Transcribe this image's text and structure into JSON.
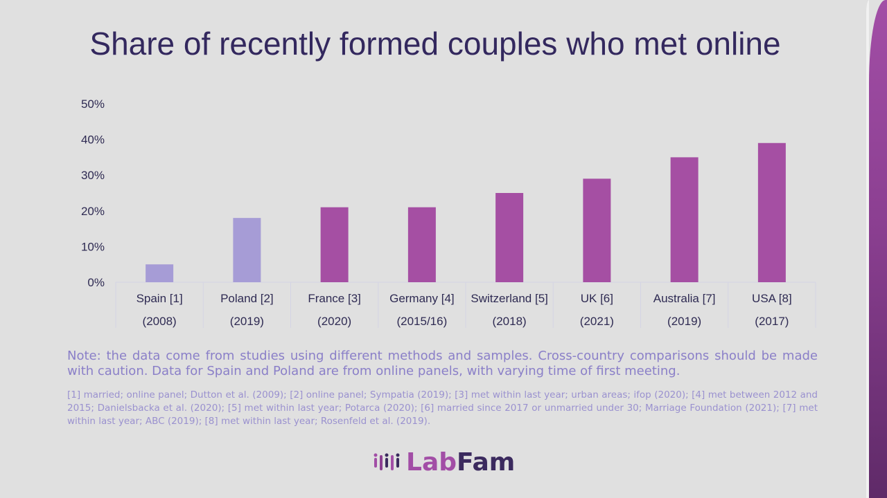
{
  "slide": {
    "title": "Share of recently formed couples who met online",
    "note": "Note: the data come from studies using different methods and samples. Cross-country comparisons should be made with caution. Data for Spain and Poland are from online panels, with varying time of first meeting.",
    "references": "[1] married; online panel; Dutton et al. (2009); [2] online panel; Sympatia (2019); [3] met within last year; urban areas; ifop (2020); [4] met between 2012 and 2015; Danielsbacka et al. (2020); [5] met within last year; Potarca (2020); [6] married since 2017 or unmarried under 30; Marriage Foundation (2021); [7] met within last year; ABC (2019); [8] met within last year; Rosenfeld et al. (2019).",
    "logo": {
      "part1": "Lab",
      "part2": "Fam"
    }
  },
  "colors": {
    "bar_primary": "#a54fa3",
    "bar_online_panel": "#a69cd6",
    "title": "#33285e",
    "axis_text": "#2e2a52"
  },
  "chart_data": {
    "type": "bar",
    "title": "Share of recently formed couples who met online",
    "categories": [
      "Spain [1]",
      "Poland [2]",
      "France [3]",
      "Germany [4]",
      "Switzerland [5]",
      "UK [6]",
      "Australia [7]",
      "USA [8]"
    ],
    "category_years": [
      "(2008)",
      "(2019)",
      "(2020)",
      "(2015/16)",
      "(2018)",
      "(2021)",
      "(2019)",
      "(2017)"
    ],
    "values": [
      5,
      18,
      21,
      21,
      25,
      29,
      35,
      39
    ],
    "bar_colors": [
      "#a69cd6",
      "#a69cd6",
      "#a54fa3",
      "#a54fa3",
      "#a54fa3",
      "#a54fa3",
      "#a54fa3",
      "#a54fa3"
    ],
    "yticks": [
      "0%",
      "10%",
      "20%",
      "30%",
      "40%",
      "50%"
    ],
    "ylim": [
      0,
      50
    ],
    "xlabel": "",
    "ylabel": "",
    "grid": false,
    "legend": "none"
  }
}
